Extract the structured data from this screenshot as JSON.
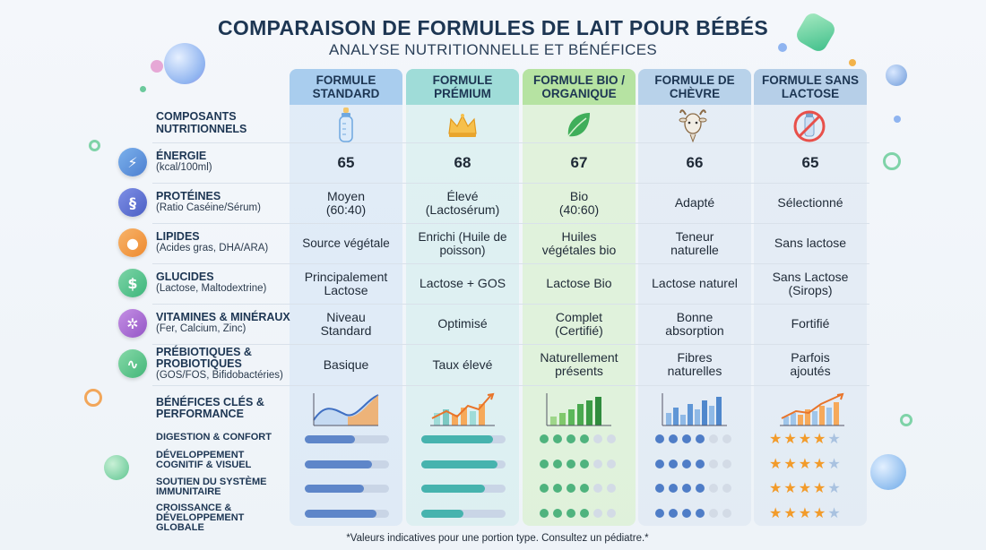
{
  "title": "COMPARAISON DE FORMULES DE LAIT POUR BÉBÉS",
  "subtitle": "ANALYSE NUTRITIONNELLE ET BÉNÉFICES",
  "columns": [
    {
      "name": "FORMULE STANDARD",
      "icon": "baby-bottle-icon",
      "color": "#a9cdee"
    },
    {
      "name": "FORMULE PRÉMIUM",
      "icon": "crown-icon",
      "color": "#9fdcd8"
    },
    {
      "name": "FORMULE BIO / ORGANIQUE",
      "icon": "leaf-icon",
      "color": "#b6e3a2"
    },
    {
      "name": "FORMULE DE CHÈVRE",
      "icon": "goat-icon",
      "color": "#b8d2ea"
    },
    {
      "name": "FORMULE SANS LACTOSE",
      "icon": "no-milk-icon",
      "color": "#b6cfe8"
    }
  ],
  "components_label": "COMPOSANTS NUTRITIONNELS",
  "rows": [
    {
      "title": "ÉNERGIE",
      "sub": "(kcal/100ml)",
      "icon": "lightning-icon",
      "values": [
        "65",
        "68",
        "67",
        "66",
        "65"
      ]
    },
    {
      "title": "PROTÉINES",
      "sub": "(Ratio Caséine/Sérum)",
      "icon": "dna-icon",
      "values": [
        "Moyen (60:40)",
        "Élevé (Lactosérum)",
        "Bio (40:60)",
        "Adapté",
        "Sélectionné"
      ]
    },
    {
      "title": "LIPIDES",
      "sub": "(Acides gras, DHA/ARA)",
      "icon": "drop-icon",
      "values": [
        "Source végétale",
        "Enrichi (Huile de poisson)",
        "Huiles végétales bio",
        "Teneur naturelle",
        "Sans lactose"
      ]
    },
    {
      "title": "GLUCIDES",
      "sub": "(Lactose, Maltodextrine)",
      "icon": "dollar-icon",
      "values": [
        "Principalement Lactose",
        "Lactose + GOS",
        "Lactose Bio",
        "Lactose naturel",
        "Sans Lactose (Sirops)"
      ]
    },
    {
      "title": "VITAMINES & MINÉRAUX",
      "sub": "(Fer, Calcium, Zinc)",
      "icon": "molecule-icon",
      "values": [
        "Niveau Standard",
        "Optimisé",
        "Complet (Certifié)",
        "Bonne absorption",
        "Fortifié"
      ]
    },
    {
      "title": "PRÉBIOTIQUES & PROBIOTIQUES",
      "sub": "(GOS/FOS, Bifidobactéries)",
      "icon": "bacteria-icon",
      "values": [
        "Basique",
        "Taux élevé",
        "Naturellement présents",
        "Fibres naturelles",
        "Parfois ajoutés"
      ]
    }
  ],
  "benefits_label": "BÉNÉFICES CLÉS & PERFORMANCE",
  "benefits": [
    {
      "label": "DIGESTION & CONFORT",
      "scores": [
        0.6,
        0.85,
        4,
        4,
        4
      ]
    },
    {
      "label": "DÉVELOPPEMENT COGNITIF & VISUEL",
      "scores": [
        0.8,
        0.9,
        4,
        4,
        4
      ]
    },
    {
      "label": "SOUTIEN DU SYSTÈME IMMUNITAIRE",
      "scores": [
        0.7,
        0.75,
        4,
        4,
        4
      ]
    },
    {
      "label": "CROISSANCE & DÉVELOPPEMENT GLOBALE",
      "scores": [
        0.85,
        0.5,
        4,
        4,
        4
      ]
    }
  ],
  "footnote": "*Valeurs indicatives pour une portion type. Consultez un pédiatre.*",
  "colors": {
    "title": "#1d3653",
    "bar_standard": "#5e86c9",
    "bar_premium": "#46b3ae",
    "dot_bio": "#4fb37e",
    "dot_goat": "#4f7dc7",
    "star": "#f29b2a"
  }
}
